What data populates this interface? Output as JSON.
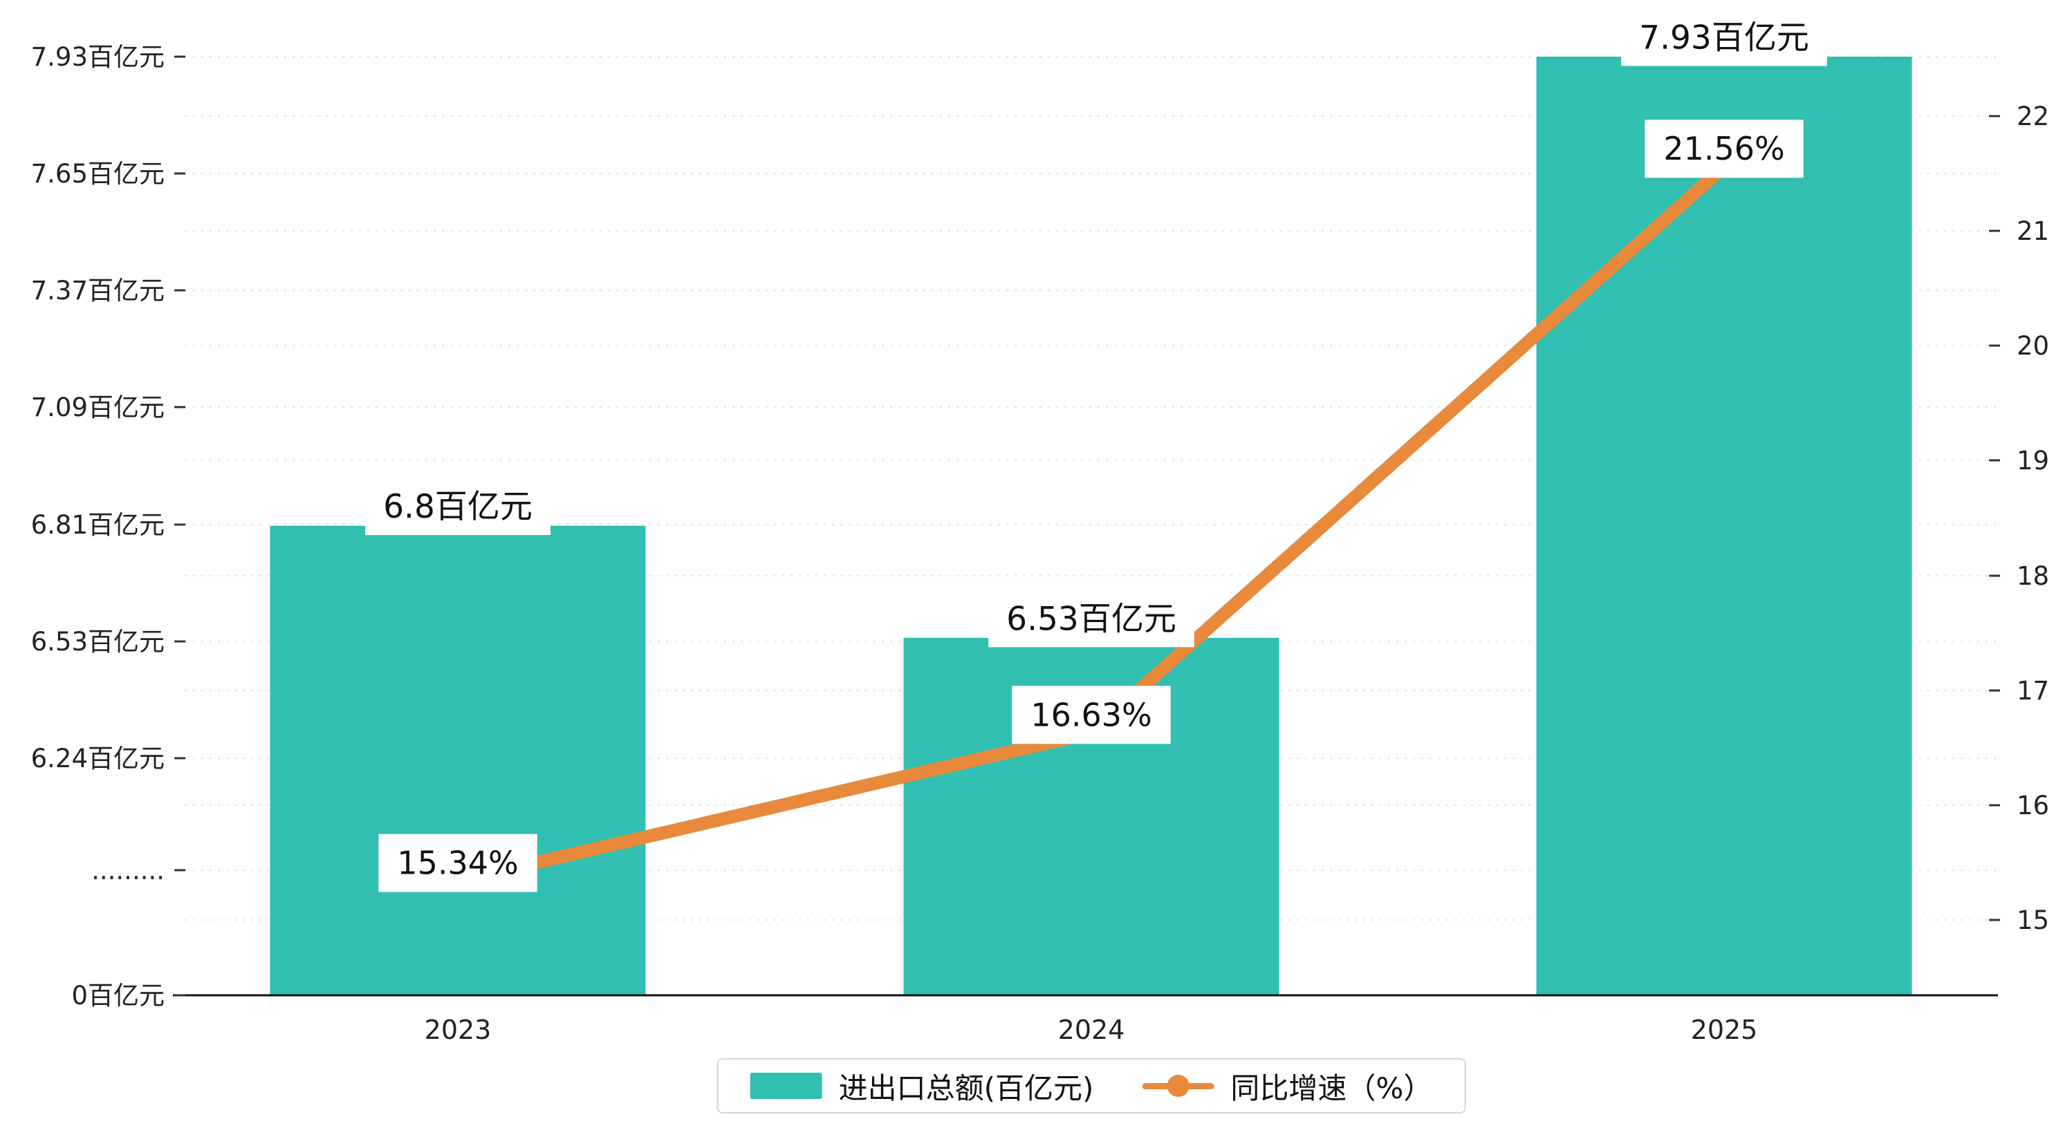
{
  "colors": {
    "bar": "#30bfb1",
    "line": "#e8893c",
    "axis_text": "#222222",
    "label_text": "#111111",
    "gridline": "#e4e4e4",
    "background": "#ffffff"
  },
  "chart_data": {
    "type": "bar+line",
    "categories": [
      "2023",
      "2024",
      "2025"
    ],
    "series": [
      {
        "name": "进出口总额(百亿元)",
        "type": "bar",
        "color": "#30bfb1",
        "values": [
          6.8,
          6.53,
          7.93
        ],
        "labels": [
          "6.8百亿元",
          "6.53百亿元",
          "7.93百亿元"
        ]
      },
      {
        "name": "同比增速（%）",
        "type": "line",
        "color": "#e8893c",
        "values": [
          15.34,
          16.63,
          21.56
        ],
        "labels": [
          "15.34%",
          "16.63%",
          "21.56%"
        ]
      }
    ],
    "left_axis": {
      "tick_labels": [
        "7.93百亿元",
        "7.65百亿元",
        "7.37百亿元",
        "7.09百亿元",
        "6.81百亿元",
        "6.53百亿元",
        "6.24百亿元",
        ".........",
        "0百亿元"
      ],
      "tick_values": [
        7.93,
        7.65,
        7.37,
        7.09,
        6.81,
        6.53,
        6.24,
        null,
        0
      ],
      "broken_axis": true
    },
    "right_axis": {
      "tick_labels": [
        "22",
        "21",
        "20",
        "19",
        "18",
        "17",
        "16",
        "15"
      ],
      "range": [
        15,
        22
      ]
    },
    "grid": "dotted-horizontal",
    "legend_position": "bottom-center",
    "legend": [
      {
        "label": "进出口总额(百亿元)",
        "swatch": "bar",
        "color": "#30bfb1"
      },
      {
        "label": "同比增速（%）",
        "swatch": "line",
        "color": "#e8893c"
      }
    ]
  }
}
